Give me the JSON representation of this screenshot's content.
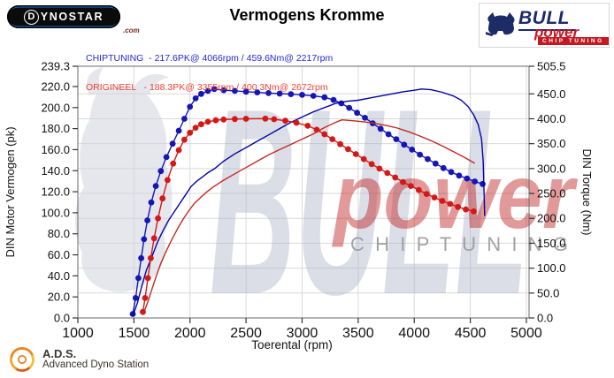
{
  "header": {
    "dynostar": {
      "first": "D",
      "rest": "YNOSTAR",
      "suffix": ".com"
    },
    "title": "Vermogens Kromme",
    "bullpower": {
      "brand": "BULL",
      "sub": "power",
      "tagline": "CHIP TUNING"
    },
    "legend": [
      {
        "name": "chiptuning",
        "color": "#2626d8",
        "text": "CHIPTUNING  - 217.6PK@ 4066rpm / 459.6Nm@ 2217rpm"
      },
      {
        "name": "origineel",
        "color": "#ee4030",
        "text": "ORIGINEEL   - 188.3PK@ 3355rpm / 400.3Nm@ 2672rpm"
      }
    ]
  },
  "footer": {
    "ads_abbr": "A.D.S.",
    "ads_name": "Advanced Dyno Station"
  },
  "chart_data": {
    "type": "line",
    "title": "Vermogens Kromme",
    "xlabel": "Toerental (rpm)",
    "ylabel_left": "DIN Motor Vermogen (pk)",
    "ylabel_right": "DIN Torque (Nm)",
    "xlim": [
      1000,
      5024
    ],
    "x_ticks": [
      1000,
      1500,
      2000,
      2500,
      3000,
      3500,
      4000,
      4500,
      5000
    ],
    "ylim_left": [
      0,
      239.3
    ],
    "y_ticks_left": [
      0,
      20,
      40,
      60,
      80,
      100,
      120,
      140,
      160,
      180,
      200,
      220,
      239.3
    ],
    "ylim_right": [
      0,
      505.5
    ],
    "y_ticks_right": [
      0,
      50,
      100,
      150,
      200,
      250,
      300,
      350,
      400,
      450,
      505.5
    ],
    "grid": {
      "color": "#d9d9d9"
    },
    "peaks": {
      "chiptuning": {
        "power_pk": 217.6,
        "power_rpm": 4066,
        "torque_nm": 459.6,
        "torque_rpm": 2217
      },
      "origineel": {
        "power_pk": 188.3,
        "power_rpm": 3355,
        "torque_nm": 400.3,
        "torque_rpm": 2672
      }
    },
    "watermarks": {
      "big": "BULL",
      "script": "power",
      "tagline": "C H I P   T U N I N G"
    },
    "series": [
      {
        "name": "chiptuning-torque",
        "axis": "right",
        "color": "#1616b6",
        "markers": true,
        "points": [
          [
            1490,
            8
          ],
          [
            1515,
            40
          ],
          [
            1540,
            80
          ],
          [
            1565,
            120
          ],
          [
            1590,
            158
          ],
          [
            1620,
            196
          ],
          [
            1655,
            232
          ],
          [
            1695,
            265
          ],
          [
            1740,
            295
          ],
          [
            1790,
            323
          ],
          [
            1845,
            350
          ],
          [
            1900,
            376
          ],
          [
            1950,
            400
          ],
          [
            2000,
            424
          ],
          [
            2050,
            441
          ],
          [
            2100,
            450
          ],
          [
            2160,
            456
          ],
          [
            2217,
            459.6
          ],
          [
            2300,
            457.5
          ],
          [
            2400,
            456
          ],
          [
            2500,
            454.5
          ],
          [
            2600,
            453
          ],
          [
            2700,
            451.5
          ],
          [
            2800,
            450.5
          ],
          [
            2900,
            449.5
          ],
          [
            3000,
            448
          ],
          [
            3100,
            446
          ],
          [
            3200,
            443
          ],
          [
            3280,
            438
          ],
          [
            3350,
            431
          ],
          [
            3420,
            422
          ],
          [
            3490,
            412
          ],
          [
            3560,
            402
          ],
          [
            3630,
            391
          ],
          [
            3700,
            380
          ],
          [
            3770,
            369
          ],
          [
            3840,
            359
          ],
          [
            3910,
            348
          ],
          [
            3980,
            338
          ],
          [
            4050,
            328
          ],
          [
            4120,
            319
          ],
          [
            4190,
            310
          ],
          [
            4260,
            301
          ],
          [
            4330,
            293
          ],
          [
            4400,
            286
          ],
          [
            4470,
            280
          ],
          [
            4540,
            274
          ],
          [
            4610,
            269
          ]
        ]
      },
      {
        "name": "chiptuning-power",
        "axis": "left",
        "color": "#0202a8",
        "markers": false,
        "points": [
          [
            1490,
            2
          ],
          [
            1530,
            14
          ],
          [
            1570,
            30
          ],
          [
            1610,
            45
          ],
          [
            1660,
            58
          ],
          [
            1710,
            72
          ],
          [
            1760,
            83
          ],
          [
            1810,
            93
          ],
          [
            1860,
            101
          ],
          [
            1910,
            109
          ],
          [
            1960,
            117
          ],
          [
            2010,
            125
          ],
          [
            2060,
            130
          ],
          [
            2110,
            134
          ],
          [
            2160,
            138
          ],
          [
            2220,
            142
          ],
          [
            2300,
            149
          ],
          [
            2400,
            156
          ],
          [
            2500,
            162
          ],
          [
            2600,
            168
          ],
          [
            2700,
            174
          ],
          [
            2800,
            180
          ],
          [
            2900,
            186
          ],
          [
            3000,
            191
          ],
          [
            3100,
            196
          ],
          [
            3200,
            200
          ],
          [
            3300,
            204
          ],
          [
            3400,
            206
          ],
          [
            3500,
            207
          ],
          [
            3600,
            209
          ],
          [
            3700,
            211
          ],
          [
            3800,
            213
          ],
          [
            3900,
            215
          ],
          [
            4000,
            216.5
          ],
          [
            4066,
            217.6
          ],
          [
            4150,
            217
          ],
          [
            4250,
            214.5
          ],
          [
            4350,
            211
          ],
          [
            4420,
            207
          ],
          [
            4480,
            201
          ],
          [
            4530,
            193
          ],
          [
            4570,
            184
          ],
          [
            4600,
            170
          ],
          [
            4615,
            148
          ],
          [
            4622,
            120
          ],
          [
            4628,
            97
          ]
        ]
      },
      {
        "name": "origineel-torque",
        "axis": "right",
        "color": "#d41818",
        "markers": true,
        "points": [
          [
            1580,
            12
          ],
          [
            1600,
            40
          ],
          [
            1625,
            80
          ],
          [
            1650,
            120
          ],
          [
            1680,
            160
          ],
          [
            1715,
            200
          ],
          [
            1755,
            240
          ],
          [
            1800,
            277
          ],
          [
            1850,
            310
          ],
          [
            1900,
            337
          ],
          [
            1950,
            358
          ],
          [
            2000,
            372
          ],
          [
            2050,
            382
          ],
          [
            2100,
            389
          ],
          [
            2160,
            394
          ],
          [
            2230,
            397
          ],
          [
            2300,
            398.5
          ],
          [
            2400,
            399.5
          ],
          [
            2500,
            400
          ],
          [
            2672,
            400.3
          ],
          [
            2750,
            399
          ],
          [
            2850,
            396
          ],
          [
            2950,
            392
          ],
          [
            3050,
            386
          ],
          [
            3130,
            378
          ],
          [
            3200,
            369
          ],
          [
            3270,
            359
          ],
          [
            3340,
            349
          ],
          [
            3410,
            339
          ],
          [
            3480,
            329
          ],
          [
            3550,
            319
          ],
          [
            3620,
            309
          ],
          [
            3690,
            300
          ],
          [
            3760,
            291
          ],
          [
            3830,
            282
          ],
          [
            3900,
            273
          ],
          [
            3970,
            265
          ],
          [
            4040,
            257
          ],
          [
            4110,
            249
          ],
          [
            4180,
            242
          ],
          [
            4250,
            235
          ],
          [
            4320,
            229
          ],
          [
            4390,
            223
          ],
          [
            4460,
            218
          ],
          [
            4530,
            214
          ]
        ]
      },
      {
        "name": "origineel-power",
        "axis": "left",
        "color": "#c22a22",
        "markers": false,
        "points": [
          [
            1580,
            3
          ],
          [
            1620,
            14
          ],
          [
            1660,
            27
          ],
          [
            1700,
            40
          ],
          [
            1740,
            52
          ],
          [
            1790,
            64
          ],
          [
            1840,
            75
          ],
          [
            1890,
            85
          ],
          [
            1940,
            94
          ],
          [
            1990,
            102
          ],
          [
            2040,
            109
          ],
          [
            2090,
            114
          ],
          [
            2140,
            119
          ],
          [
            2200,
            124
          ],
          [
            2300,
            131
          ],
          [
            2400,
            137
          ],
          [
            2500,
            143
          ],
          [
            2600,
            149
          ],
          [
            2700,
            155
          ],
          [
            2800,
            160
          ],
          [
            2900,
            165
          ],
          [
            3000,
            170
          ],
          [
            3100,
            175
          ],
          [
            3200,
            181
          ],
          [
            3300,
            186
          ],
          [
            3355,
            188.3
          ],
          [
            3450,
            187.5
          ],
          [
            3550,
            186.5
          ],
          [
            3650,
            185
          ],
          [
            3750,
            183
          ],
          [
            3850,
            180.5
          ],
          [
            3950,
            177
          ],
          [
            4050,
            173
          ],
          [
            4150,
            168.5
          ],
          [
            4250,
            163.5
          ],
          [
            4350,
            158
          ],
          [
            4450,
            152.5
          ],
          [
            4540,
            147
          ]
        ]
      }
    ]
  }
}
